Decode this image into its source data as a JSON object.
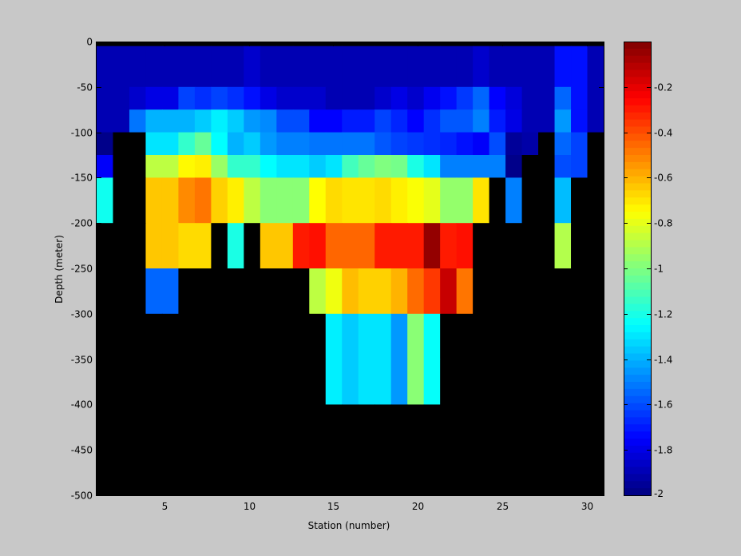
{
  "chart_data": {
    "type": "heatmap",
    "title": "",
    "xlabel": "Station (number)",
    "ylabel": "Depth (meter)",
    "xlim": [
      1,
      31
    ],
    "ylim": [
      -500,
      0
    ],
    "x_ticks": [
      5,
      10,
      15,
      20,
      25,
      30
    ],
    "x_tick_labels": [
      "5",
      "10",
      "15",
      "20",
      "25",
      "30"
    ],
    "y_ticks": [
      0,
      -50,
      -100,
      -150,
      -200,
      -250,
      -300,
      -350,
      -400,
      -450,
      -500
    ],
    "y_tick_labels": [
      "0",
      "-50",
      "-100",
      "-150",
      "-200",
      "-250",
      "-300",
      "-350",
      "-400",
      "-450",
      "-500"
    ],
    "colorbar": {
      "colormap": "jet",
      "range": [
        -2,
        0
      ],
      "ticks": [
        -0.2,
        -0.4,
        -0.6,
        -0.8,
        -1,
        -1.2,
        -1.4,
        -1.6,
        -1.8,
        -2
      ],
      "tick_labels": [
        "-0.2",
        "-0.4",
        "-0.6",
        "-0.8",
        "-1",
        "-1.2",
        "-1.4",
        "-1.6",
        "-1.8",
        "-2"
      ]
    },
    "missing_color": "#000000",
    "background_color": "#c8c8c8",
    "stations": [
      1,
      2,
      3,
      4,
      5,
      6,
      7,
      8,
      9,
      10,
      11,
      12,
      13,
      14,
      15,
      16,
      17,
      18,
      19,
      20,
      21,
      22,
      23,
      24,
      25,
      26,
      27,
      28,
      29,
      30,
      31
    ],
    "depth_bins": [
      [
        0,
        -5
      ],
      [
        -5,
        -50
      ],
      [
        -50,
        -75
      ],
      [
        -75,
        -100
      ],
      [
        -100,
        -125
      ],
      [
        -125,
        -150
      ],
      [
        -150,
        -200
      ],
      [
        -200,
        -250
      ],
      [
        -250,
        -300
      ],
      [
        -300,
        -350
      ],
      [
        -350,
        -400
      ],
      [
        -400,
        -500
      ]
    ],
    "values": [
      [
        null,
        null,
        null,
        null,
        null,
        null,
        null,
        null,
        null,
        null,
        null,
        null,
        null,
        null,
        null,
        null,
        null,
        null,
        null,
        null,
        null,
        null,
        null,
        null,
        null,
        null,
        null,
        null,
        null,
        null,
        null
      ],
      [
        -1.9,
        -1.9,
        -1.9,
        -1.9,
        -1.9,
        -1.9,
        -1.9,
        -1.9,
        -1.9,
        -1.85,
        -1.9,
        -1.9,
        -1.9,
        -1.9,
        -1.9,
        -1.9,
        -1.9,
        -1.9,
        -1.9,
        -1.9,
        -1.9,
        -1.9,
        -1.9,
        -1.85,
        -1.9,
        -1.9,
        -1.9,
        -1.9,
        -1.72,
        -1.72,
        -1.9
      ],
      [
        -1.9,
        -1.9,
        -1.85,
        -1.8,
        -1.8,
        -1.62,
        -1.66,
        -1.62,
        -1.66,
        -1.72,
        -1.8,
        -1.85,
        -1.85,
        -1.85,
        -1.9,
        -1.9,
        -1.9,
        -1.85,
        -1.8,
        -1.85,
        -1.78,
        -1.72,
        -1.64,
        -1.55,
        -1.75,
        -1.82,
        -1.9,
        -1.9,
        -1.55,
        -1.72,
        -1.9
      ],
      [
        -1.9,
        -1.9,
        -1.52,
        -1.4,
        -1.4,
        -1.4,
        -1.35,
        -1.28,
        -1.35,
        -1.45,
        -1.48,
        -1.6,
        -1.6,
        -1.75,
        -1.75,
        -1.7,
        -1.7,
        -1.62,
        -1.68,
        -1.75,
        -1.66,
        -1.58,
        -1.58,
        -1.5,
        -1.7,
        -1.8,
        -1.9,
        -1.9,
        -1.45,
        -1.72,
        -1.9
      ],
      [
        -1.98,
        null,
        null,
        -1.3,
        -1.3,
        -1.15,
        -1.05,
        -1.25,
        -1.4,
        -1.35,
        -1.45,
        -1.5,
        -1.5,
        -1.52,
        -1.52,
        -1.52,
        -1.52,
        -1.58,
        -1.62,
        -1.64,
        -1.66,
        -1.68,
        -1.72,
        -1.76,
        -1.6,
        -1.95,
        -1.92,
        null,
        -1.55,
        -1.62,
        null
      ],
      [
        -1.76,
        null,
        null,
        -0.88,
        -0.88,
        -0.74,
        -0.72,
        -0.95,
        -1.15,
        -1.15,
        -1.25,
        -1.3,
        -1.3,
        -1.35,
        -1.3,
        -1.12,
        -1.05,
        -1.0,
        -1.02,
        -1.2,
        -1.3,
        -1.5,
        -1.5,
        -1.5,
        -1.5,
        -1.98,
        null,
        null,
        -1.6,
        -1.62,
        null
      ],
      [
        -1.22,
        null,
        null,
        -0.64,
        -0.64,
        -0.52,
        -0.48,
        -0.66,
        -0.72,
        -0.88,
        -0.98,
        -0.98,
        -0.98,
        -0.75,
        -0.68,
        -0.7,
        -0.7,
        -0.68,
        -0.72,
        -0.76,
        -0.8,
        -0.96,
        -0.96,
        -0.7,
        null,
        -1.5,
        null,
        null,
        -1.38,
        null,
        null
      ],
      [
        null,
        null,
        null,
        -0.64,
        -0.64,
        -0.68,
        -0.68,
        null,
        -1.2,
        null,
        -0.64,
        -0.64,
        -0.3,
        -0.28,
        -0.45,
        -0.45,
        -0.45,
        -0.3,
        -0.3,
        -0.3,
        -0.04,
        -0.3,
        -0.28,
        null,
        null,
        null,
        null,
        null,
        -0.9,
        null,
        null
      ],
      [
        null,
        null,
        null,
        -1.55,
        -1.55,
        null,
        null,
        null,
        null,
        null,
        null,
        null,
        null,
        -0.88,
        -0.78,
        -0.62,
        -0.66,
        -0.66,
        -0.6,
        -0.46,
        -0.36,
        -0.14,
        -0.48,
        null,
        null,
        null,
        null,
        null,
        null,
        null,
        null
      ],
      [
        null,
        null,
        null,
        null,
        null,
        null,
        null,
        null,
        null,
        null,
        null,
        null,
        null,
        null,
        -1.28,
        -1.35,
        -1.3,
        -1.3,
        -1.45,
        -0.98,
        -1.24,
        null,
        null,
        null,
        null,
        null,
        null,
        null,
        null,
        null,
        null
      ],
      [
        null,
        null,
        null,
        null,
        null,
        null,
        null,
        null,
        null,
        null,
        null,
        null,
        null,
        null,
        -1.28,
        -1.35,
        -1.3,
        -1.3,
        -1.45,
        -0.98,
        -1.24,
        null,
        null,
        null,
        null,
        null,
        null,
        null,
        null,
        null,
        null
      ],
      [
        null,
        null,
        null,
        null,
        null,
        null,
        null,
        null,
        null,
        null,
        null,
        null,
        null,
        null,
        null,
        null,
        null,
        null,
        null,
        null,
        null,
        null,
        null,
        null,
        null,
        null,
        null,
        null,
        null,
        null,
        null
      ]
    ]
  }
}
